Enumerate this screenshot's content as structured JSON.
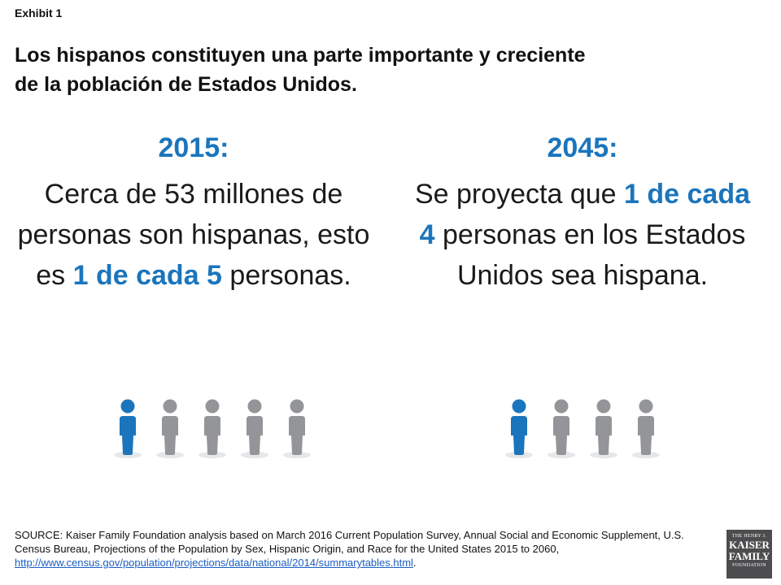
{
  "exhibit_label": "Exhibit 1",
  "headline_line1": "Los hispanos constituyen una parte importante y creciente",
  "headline_line2": "de la población de Estados Unidos.",
  "left": {
    "year": "2015:",
    "text_before": "Cerca de 53 millones de personas son hispanas, esto es ",
    "highlight": "1 de cada 5",
    "text_after": " personas.",
    "people": [
      {
        "highlight": true
      },
      {
        "highlight": false
      },
      {
        "highlight": false
      },
      {
        "highlight": false
      },
      {
        "highlight": false
      }
    ]
  },
  "right": {
    "year": "2045:",
    "text_before": "Se proyecta que ",
    "highlight": "1 de cada 4",
    "text_after": " personas en los Estados Unidos sea hispana.",
    "people": [
      {
        "highlight": true
      },
      {
        "highlight": false
      },
      {
        "highlight": false
      },
      {
        "highlight": false
      }
    ]
  },
  "source": {
    "text": "SOURCE: Kaiser Family Foundation analysis based on March 2016 Current Population Survey, Annual Social and Economic Supplement, U.S. Census Bureau, Projections of the Population by Sex, Hispanic Origin, and Race for the United States 2015 to 2060, ",
    "link": "http://www.census.gov/population/projections/data/national/2014/summarytables.html",
    "end": "."
  },
  "logo": {
    "line1": "THE HENRY J.",
    "line2": "KAISER",
    "line3": "FAMILY",
    "line4": "FOUNDATION"
  },
  "colors": {
    "accent": "#1b75bc",
    "person_gray": "#939598",
    "shadow": "#e6e7e8"
  }
}
